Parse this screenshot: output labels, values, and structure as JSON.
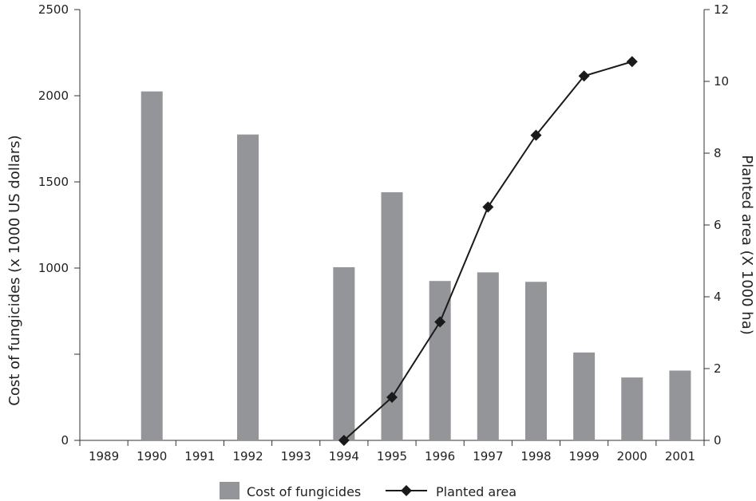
{
  "chart_data": {
    "type": "bar+line",
    "title": "",
    "categories": [
      "1989",
      "1990",
      "1991",
      "1992",
      "1993",
      "1994",
      "1995",
      "1996",
      "1997",
      "1998",
      "1999",
      "2000",
      "2001"
    ],
    "series": [
      {
        "name": "Cost of fungicides",
        "type": "bar",
        "axis": "left",
        "color": "#939598",
        "values": [
          null,
          2025,
          null,
          1775,
          null,
          1005,
          1440,
          925,
          975,
          920,
          510,
          365,
          405
        ]
      },
      {
        "name": "Planted area",
        "type": "line",
        "axis": "right",
        "color": "#1a1a1a",
        "marker": "diamond",
        "values": [
          null,
          null,
          null,
          null,
          null,
          0,
          1.2,
          3.3,
          6.5,
          8.5,
          10.15,
          10.55,
          null
        ]
      }
    ],
    "ylabel_left": "Cost of fungicides (x 1000 US dollars)",
    "ylim_left": [
      0,
      2500
    ],
    "yticks_left": [
      {
        "value": 0,
        "label": "0"
      },
      {
        "value": 500,
        "label": ""
      },
      {
        "value": 1000,
        "label": "1000"
      },
      {
        "value": 1500,
        "label": "1500"
      },
      {
        "value": 2000,
        "label": "2000"
      },
      {
        "value": 2500,
        "label": "2500"
      }
    ],
    "ylabel_right": "Planted area (X 1000 ha)",
    "ylim_right": [
      0,
      12
    ],
    "yticks_right": [
      {
        "value": 0,
        "label": "0"
      },
      {
        "value": 2,
        "label": "2"
      },
      {
        "value": 4,
        "label": "4"
      },
      {
        "value": 6,
        "label": "6"
      },
      {
        "value": 8,
        "label": "8"
      },
      {
        "value": 10,
        "label": "10"
      },
      {
        "value": 12,
        "label": "12"
      }
    ],
    "legend_position": "bottom",
    "grid": false
  }
}
